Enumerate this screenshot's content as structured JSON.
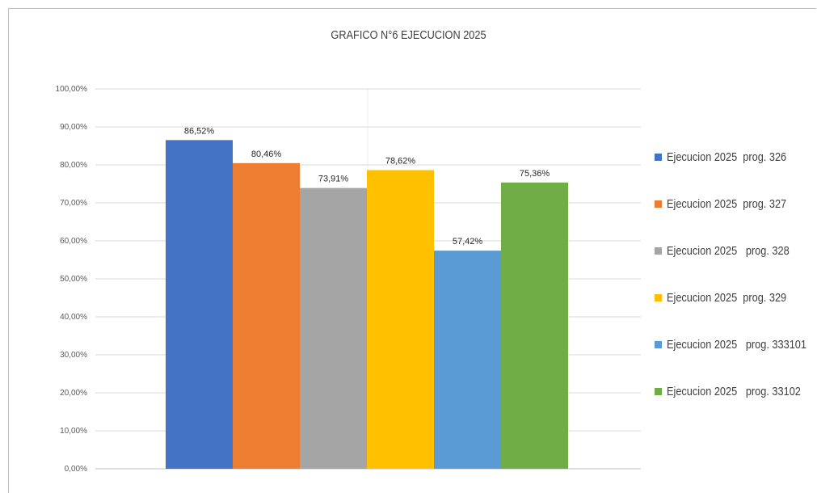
{
  "chart_data": {
    "type": "bar",
    "title": "GRAFICO N°6 EJECUCION 2025",
    "xlabel": "",
    "ylabel": "",
    "ylim": [
      0,
      100
    ],
    "ytick_labels": [
      "0,00%",
      "10,00%",
      "20,00%",
      "30,00%",
      "40,00%",
      "50,00%",
      "60,00%",
      "70,00%",
      "80,00%",
      "90,00%",
      "100,00%"
    ],
    "grid": true,
    "legend_position": "right",
    "series": [
      {
        "name": "Ejecucion 2025  prog. 326",
        "value": 86.52,
        "label": "86,52%",
        "color": "#4472C4"
      },
      {
        "name": "Ejecucion 2025  prog. 327",
        "value": 80.46,
        "label": "80,46%",
        "color": "#ED7D31"
      },
      {
        "name": "Ejecucion 2025   prog. 328",
        "value": 73.91,
        "label": "73,91%",
        "color": "#A5A5A5"
      },
      {
        "name": "Ejecucion 2025  prog. 329",
        "value": 78.62,
        "label": "78,62%",
        "color": "#FFC000"
      },
      {
        "name": "Ejecucion 2025   prog. 333101",
        "value": 57.42,
        "label": "57,42%",
        "color": "#5B9BD5"
      },
      {
        "name": "Ejecucion 2025   prog. 33102",
        "value": 75.36,
        "label": "75,36%",
        "color": "#70AD47"
      }
    ]
  }
}
